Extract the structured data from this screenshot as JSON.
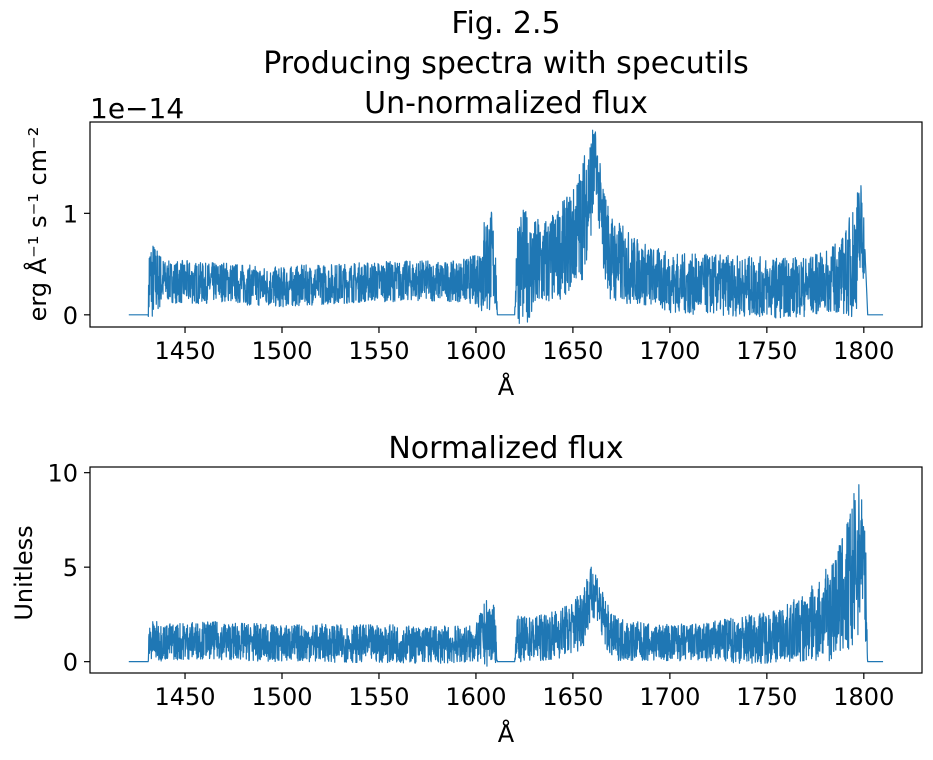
{
  "figure": {
    "title_line1": "Fig. 2.5",
    "title_line2": "Producing spectra with specutils"
  },
  "chart_data": [
    {
      "type": "line",
      "title": "Un-normalized flux",
      "xlabel": "Å",
      "ylabel": "erg Å⁻¹ s⁻¹ cm⁻²",
      "y_offset_label": "1e−14",
      "x_ticks": [
        1450,
        1500,
        1550,
        1600,
        1650,
        1700,
        1750,
        1800
      ],
      "x_tick_labels": [
        "1450",
        "1500",
        "1550",
        "1600",
        "1650",
        "1700",
        "1750",
        "1800"
      ],
      "y_ticks": [
        0,
        1
      ],
      "y_tick_labels": [
        "0",
        "1"
      ],
      "xlim": [
        1401,
        1830
      ],
      "ylim": [
        -0.12,
        1.9
      ],
      "grid": false,
      "color": "#1f77b4",
      "series": [
        {
          "x": [
            1421,
            1431,
            1431.5,
            1440,
            1450,
            1460,
            1470,
            1480,
            1490,
            1500,
            1510,
            1520,
            1530,
            1540,
            1550,
            1560,
            1570,
            1580,
            1590,
            1600,
            1605,
            1608,
            1610,
            1611,
            1612,
            1620,
            1621,
            1622,
            1630,
            1640,
            1650,
            1655,
            1660,
            1662,
            1665,
            1670,
            1680,
            1690,
            1700,
            1710,
            1720,
            1730,
            1740,
            1750,
            1760,
            1770,
            1780,
            1790,
            1795,
            1799,
            1800,
            1801,
            1802,
            1810
          ],
          "y": [
            0.0,
            0.0,
            0.35,
            0.33,
            0.32,
            0.31,
            0.33,
            0.3,
            0.28,
            0.27,
            0.29,
            0.3,
            0.31,
            0.32,
            0.33,
            0.33,
            0.34,
            0.33,
            0.33,
            0.35,
            0.5,
            0.55,
            0.45,
            0.0,
            0.0,
            0.0,
            0.55,
            0.5,
            0.45,
            0.55,
            0.75,
            0.95,
            1.35,
            1.5,
            0.9,
            0.55,
            0.45,
            0.38,
            0.32,
            0.3,
            0.3,
            0.29,
            0.28,
            0.27,
            0.27,
            0.28,
            0.32,
            0.4,
            0.55,
            0.85,
            0.7,
            0.45,
            0.0,
            0.0
          ],
          "band": [
            0.0,
            0.0,
            0.45,
            0.2,
            0.22,
            0.2,
            0.2,
            0.2,
            0.2,
            0.2,
            0.2,
            0.2,
            0.2,
            0.2,
            0.2,
            0.2,
            0.2,
            0.2,
            0.2,
            0.25,
            0.55,
            0.5,
            0.4,
            0.0,
            0.0,
            0.0,
            0.45,
            0.6,
            0.5,
            0.45,
            0.5,
            0.6,
            0.55,
            0.3,
            0.45,
            0.45,
            0.35,
            0.3,
            0.3,
            0.3,
            0.3,
            0.3,
            0.3,
            0.3,
            0.3,
            0.3,
            0.3,
            0.4,
            0.6,
            0.55,
            0.35,
            0.0,
            0.0,
            0.0
          ]
        }
      ]
    },
    {
      "type": "line",
      "title": "Normalized flux",
      "xlabel": "Å",
      "ylabel": "Unitless",
      "x_ticks": [
        1450,
        1500,
        1550,
        1600,
        1650,
        1700,
        1750,
        1800
      ],
      "x_tick_labels": [
        "1450",
        "1500",
        "1550",
        "1600",
        "1650",
        "1700",
        "1750",
        "1800"
      ],
      "y_ticks": [
        0,
        5,
        10
      ],
      "y_tick_labels": [
        "0",
        "5",
        "10"
      ],
      "xlim": [
        1401,
        1830
      ],
      "ylim": [
        -0.6,
        10.3
      ],
      "grid": false,
      "color": "#1f77b4",
      "series": [
        {
          "x": [
            1421,
            1431,
            1431.5,
            1440,
            1450,
            1460,
            1470,
            1480,
            1490,
            1500,
            1510,
            1520,
            1530,
            1540,
            1550,
            1560,
            1570,
            1580,
            1590,
            1600,
            1605,
            1608,
            1610,
            1611,
            1612,
            1620,
            1621,
            1622,
            1630,
            1640,
            1650,
            1655,
            1660,
            1662,
            1665,
            1670,
            1680,
            1690,
            1700,
            1710,
            1720,
            1730,
            1740,
            1750,
            1760,
            1770,
            1780,
            1790,
            1795,
            1799,
            1800,
            1801,
            1802,
            1810
          ],
          "y": [
            0.0,
            0.0,
            1.1,
            1.05,
            1.1,
            1.15,
            1.1,
            1.05,
            1.0,
            0.95,
            1.0,
            1.0,
            0.95,
            0.95,
            0.95,
            0.95,
            0.9,
            0.9,
            0.9,
            0.95,
            1.5,
            1.6,
            1.3,
            0.0,
            0.0,
            0.0,
            1.5,
            1.2,
            1.2,
            1.4,
            1.8,
            2.5,
            3.6,
            3.8,
            2.4,
            1.3,
            1.1,
            1.0,
            1.0,
            1.0,
            1.0,
            1.1,
            1.2,
            1.3,
            1.5,
            1.8,
            2.4,
            3.6,
            4.6,
            6.2,
            5.0,
            3.5,
            0.0,
            0.0
          ],
          "band": [
            0.0,
            0.0,
            1.1,
            1.0,
            1.0,
            1.0,
            1.0,
            1.0,
            1.0,
            1.0,
            1.0,
            1.0,
            1.0,
            1.0,
            1.0,
            1.0,
            1.0,
            1.0,
            1.0,
            1.0,
            1.8,
            1.7,
            1.4,
            0.0,
            0.0,
            0.0,
            1.0,
            1.2,
            1.2,
            1.3,
            1.4,
            1.8,
            1.5,
            1.3,
            1.4,
            1.2,
            1.1,
            1.0,
            1.0,
            1.0,
            1.1,
            1.2,
            1.3,
            1.4,
            1.5,
            1.9,
            2.4,
            3.4,
            4.4,
            3.6,
            3.0,
            2.5,
            0.0,
            0.0
          ]
        }
      ]
    }
  ]
}
